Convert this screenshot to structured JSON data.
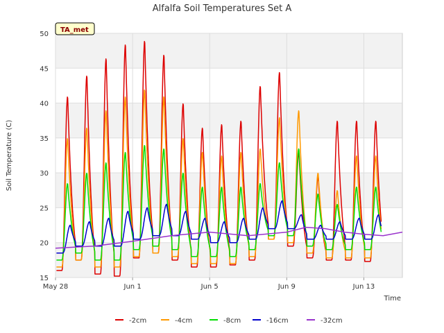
{
  "chart_data": {
    "type": "line",
    "title": "Alfalfa Soil Temperatures Set A",
    "xlabel": "Time",
    "ylabel": "Soil Temperature (C)",
    "station_label": "TA_met",
    "ylim": [
      15,
      50
    ],
    "xlim": [
      "2024-05-28",
      "2024-06-15"
    ],
    "y_ticks": [
      15,
      20,
      25,
      30,
      35,
      40,
      45,
      50
    ],
    "x_ticks": [
      {
        "label": "May 28",
        "date": "2024-05-28"
      },
      {
        "label": "Jun 1",
        "date": "2024-06-01"
      },
      {
        "label": "Jun 5",
        "date": "2024-06-05"
      },
      {
        "label": "Jun 9",
        "date": "2024-06-09"
      },
      {
        "label": "Jun 13",
        "date": "2024-06-13"
      }
    ],
    "grid": true,
    "legend_position": "bottom",
    "series": [
      {
        "name": "-2cm",
        "color": "#dd0000",
        "daily_max": [
          41,
          44,
          46.5,
          48.5,
          49,
          47,
          40,
          36.5,
          37,
          37.5,
          42.5,
          44.5,
          33,
          29.5,
          37.5,
          37.5,
          37.5
        ],
        "daily_min": [
          16,
          17.5,
          15.5,
          15.2,
          17.8,
          18.5,
          17.5,
          16.5,
          16.5,
          16.8,
          17.5,
          20.5,
          19.5,
          17.8,
          17.5,
          17.5,
          17.3
        ]
      },
      {
        "name": "-4cm",
        "color": "#ff9900",
        "daily_max": [
          35,
          36.5,
          39,
          41,
          42,
          41,
          35,
          33,
          32.5,
          33,
          33.5,
          38,
          39,
          30,
          27.5,
          32.5,
          32.5
        ],
        "daily_min": [
          16.5,
          17.5,
          16.5,
          16.5,
          18,
          18.5,
          18,
          17,
          17,
          17,
          18,
          20.5,
          20,
          18.5,
          17.8,
          17.8,
          17.8
        ]
      },
      {
        "name": "-8cm",
        "color": "#00dd00",
        "daily_max": [
          28.5,
          30,
          31.5,
          33,
          34,
          33.5,
          30,
          28,
          28,
          28,
          28.5,
          31.5,
          33.5,
          27,
          25.5,
          28,
          28
        ],
        "daily_min": [
          17.5,
          18.5,
          17.5,
          17.5,
          19,
          19.5,
          19,
          18,
          18,
          18,
          19,
          21,
          21,
          19.5,
          19,
          19,
          19
        ]
      },
      {
        "name": "-16cm",
        "color": "#0000cc",
        "daily_max": [
          22.5,
          23,
          23.5,
          24.5,
          25,
          25.5,
          24.5,
          23.5,
          23,
          23.5,
          25,
          26,
          24,
          22.5,
          23,
          23.5,
          24
        ],
        "daily_min": [
          18.5,
          19.5,
          19.5,
          19.5,
          20.5,
          21,
          21,
          20.5,
          20,
          20,
          20.5,
          22,
          22,
          20.5,
          20.5,
          20.5,
          20.5
        ]
      },
      {
        "name": "-32cm",
        "color": "#9933cc",
        "points": [
          [
            "2024-05-28",
            19.2
          ],
          [
            "2024-05-30",
            19.5
          ],
          [
            "2024-06-01",
            20.2
          ],
          [
            "2024-06-03",
            21
          ],
          [
            "2024-06-05",
            21.5
          ],
          [
            "2024-06-07",
            21
          ],
          [
            "2024-06-09",
            21.5
          ],
          [
            "2024-06-10",
            22.2
          ],
          [
            "2024-06-11",
            22
          ],
          [
            "2024-06-12",
            21.5
          ],
          [
            "2024-06-13",
            21.2
          ],
          [
            "2024-06-14",
            21
          ],
          [
            "2024-06-15",
            21.5
          ]
        ]
      }
    ]
  }
}
